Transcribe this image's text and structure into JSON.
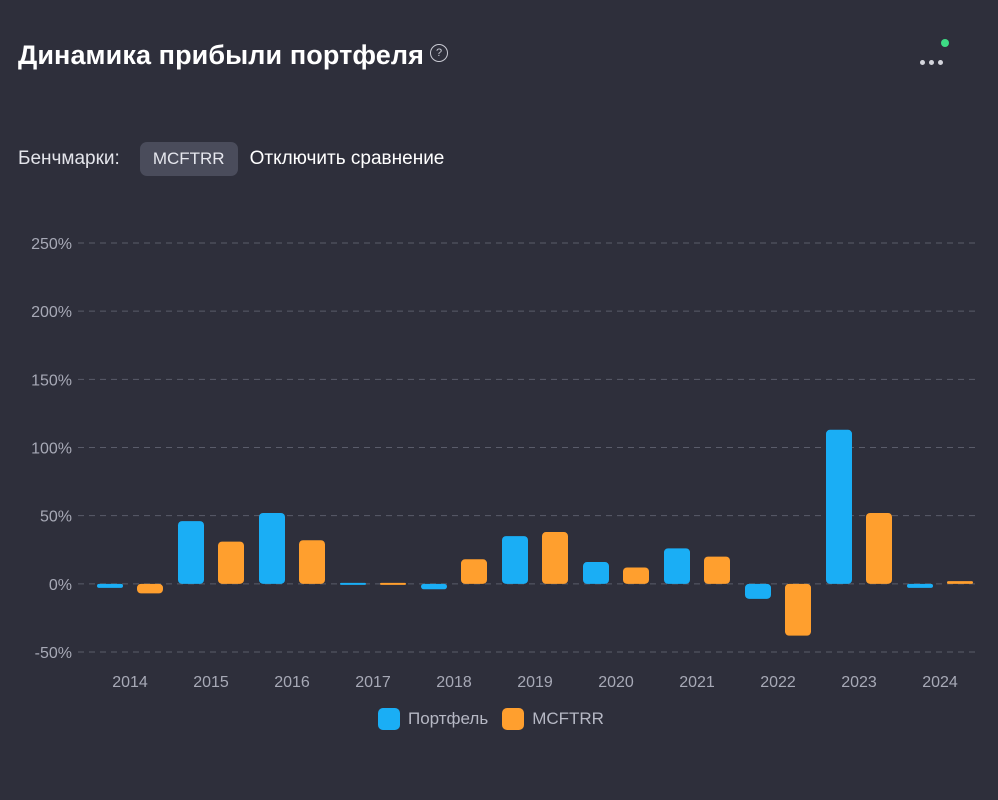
{
  "header": {
    "title": "Динамика прибыли портфеля",
    "help_icon": "question-circle-icon",
    "more_icon": "more-horizontal-icon",
    "status_color": "#3ddc84"
  },
  "benchmarks": {
    "label": "Бенчмарки:",
    "chip": "MCFTRR",
    "disable_label": "Отключить сравнение"
  },
  "colors": {
    "portfolio": "#1aaef5",
    "benchmark": "#ff9f2e",
    "background": "#2e2f3b"
  },
  "chart_data": {
    "type": "bar",
    "categories": [
      "2014",
      "2015",
      "2016",
      "2017",
      "2018",
      "2019",
      "2020",
      "2021",
      "2022",
      "2023",
      "2024"
    ],
    "series": [
      {
        "name": "Портфель",
        "values": [
          -3,
          46,
          52,
          -1,
          -4,
          35,
          16,
          26,
          -11,
          113,
          -3
        ]
      },
      {
        "name": "MCFTRR",
        "values": [
          -7,
          31,
          32,
          -1,
          18,
          38,
          12,
          20,
          -38,
          52,
          2
        ]
      }
    ],
    "ylim": [
      -50,
      250
    ],
    "yticks": [
      -50,
      0,
      50,
      100,
      150,
      200,
      250
    ],
    "ytick_labels": [
      "-50%",
      "0%",
      "50%",
      "100%",
      "150%",
      "200%",
      "250%"
    ],
    "grid": true,
    "legend_position": "bottom-center"
  }
}
